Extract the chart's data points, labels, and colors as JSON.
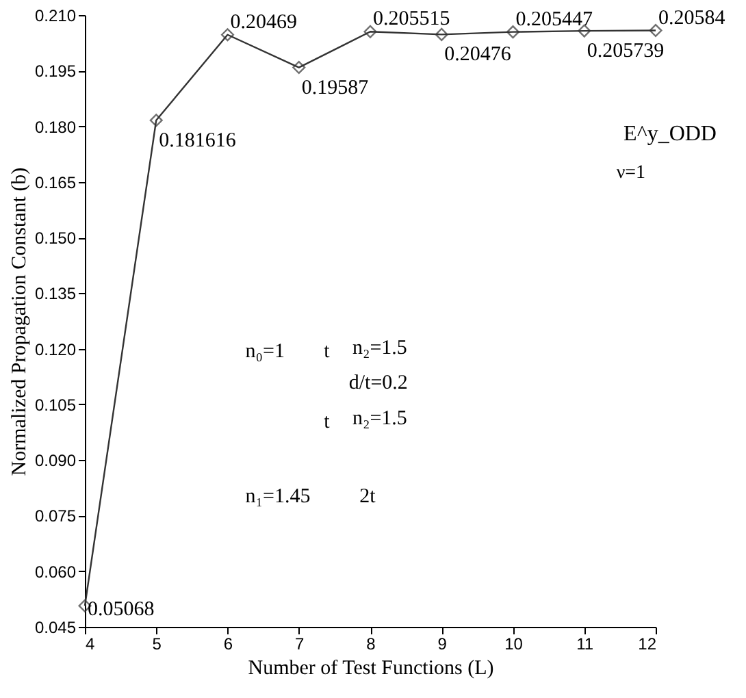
{
  "chart_data": {
    "type": "line",
    "xlabel": "Number of Test Functions (L)",
    "ylabel": "Normalized Propagation Constant (b)",
    "x": [
      4,
      5,
      6,
      7,
      8,
      9,
      10,
      11,
      12
    ],
    "series": [
      {
        "color": "#333333",
        "values": [
          0.05068,
          0.181616,
          0.20469,
          0.19587,
          0.205515,
          0.20476,
          0.205447,
          0.205739,
          0.20584
        ]
      }
    ],
    "xlim": [
      4,
      12
    ],
    "xticks": [
      4,
      5,
      6,
      7,
      8,
      9,
      10,
      11,
      12
    ],
    "ylim": [
      0.045,
      0.21
    ],
    "yticks": [
      {
        "value": 0.045,
        "label": "0.045"
      },
      {
        "value": 0.06,
        "label": "0.060"
      },
      {
        "value": 0.075,
        "label": "0.075"
      },
      {
        "value": 0.09,
        "label": "0.090"
      },
      {
        "value": 0.105,
        "label": "0.105"
      },
      {
        "value": 0.12,
        "label": "0.120"
      },
      {
        "value": 0.135,
        "label": "0.135"
      },
      {
        "value": 0.15,
        "label": "0.150"
      },
      {
        "value": 0.165,
        "label": "0.165"
      },
      {
        "value": 0.18,
        "label": "0.180"
      },
      {
        "value": 0.195,
        "label": "0.195"
      },
      {
        "value": 0.21,
        "label": "0.210"
      }
    ],
    "marker": "diamond",
    "line_style": "solid",
    "grid": false,
    "data_labels": true,
    "annotations": [
      "E^y_ODD",
      "ν=1",
      "n₀=1",
      "t",
      "n₂=1.5",
      "d/t=0.2",
      "t",
      "n₂=1.5",
      "n₁=1.45",
      "2t"
    ]
  }
}
